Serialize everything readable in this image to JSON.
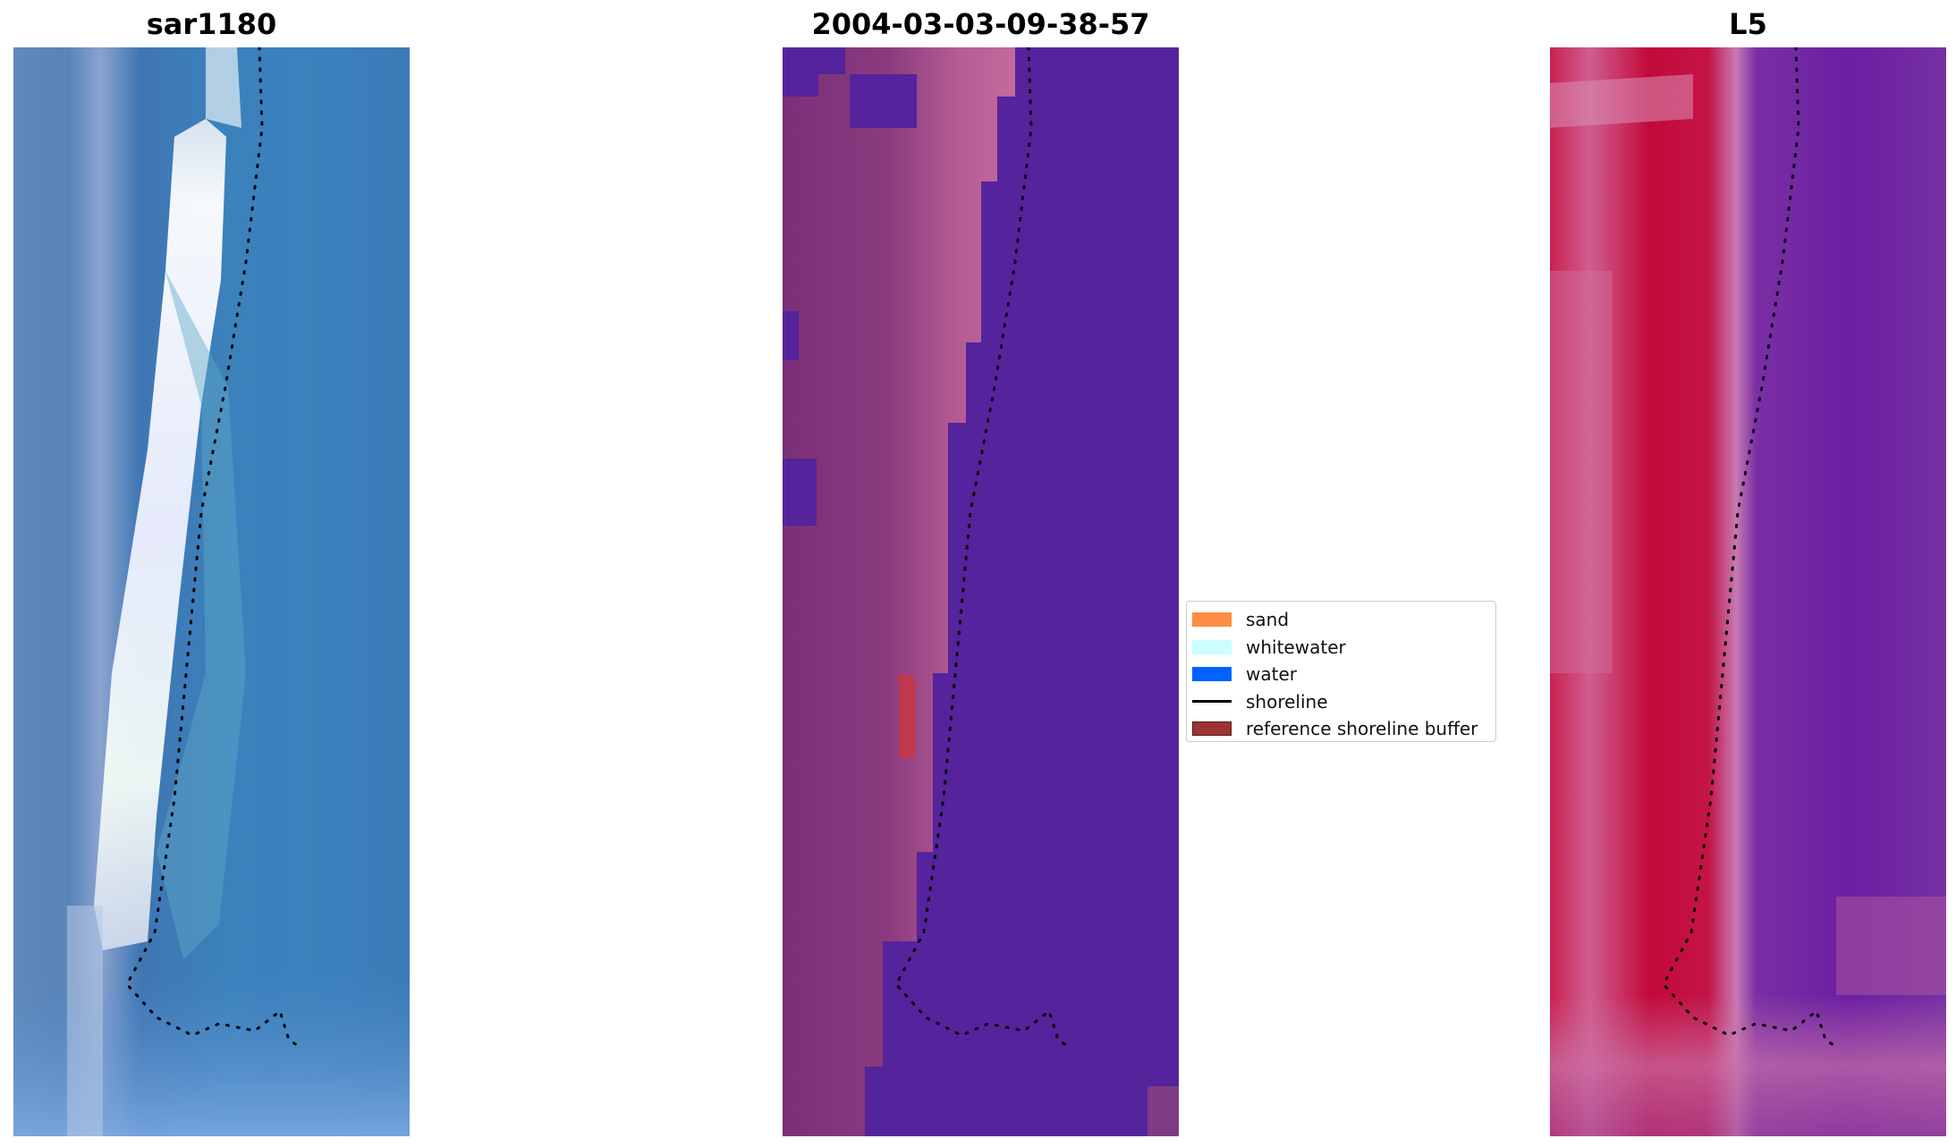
{
  "panels": [
    {
      "title": "sar1180",
      "kind": "rgb"
    },
    {
      "title": "2004-03-03-09-38-57",
      "kind": "classified"
    },
    {
      "title": "L5",
      "kind": "index"
    }
  ],
  "legend": {
    "items": [
      {
        "label": "sand",
        "color": "#FF8C42"
      },
      {
        "label": "whitewater",
        "color": "#CCFFFF"
      },
      {
        "label": "water",
        "color": "#0062FF"
      },
      {
        "label": "shoreline",
        "color": "#000000"
      },
      {
        "label": "reference shoreline buffer",
        "color": "#9B3434"
      }
    ]
  }
}
